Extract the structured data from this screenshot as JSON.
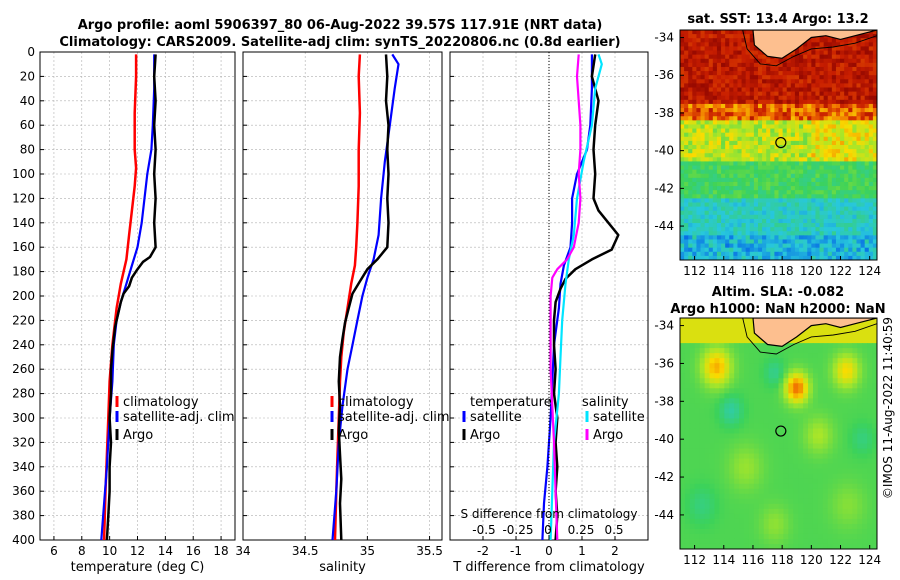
{
  "header": {
    "title_line1": "Argo profile: aoml 5906397_80 06-Aug-2022 39.57S 117.91E (NRT data)",
    "title_line2": "Climatology: CARS2009. Satellite-adj clim: synTS_20220806.nc (0.8d earlier)"
  },
  "credit": "©IMOS 11-Aug-2022 11:40:59",
  "colors": {
    "climatology": "#ff0000",
    "satellite": "#0000ff",
    "argo": "#000000",
    "sal_satellite": "#00e5ff",
    "sal_argo": "#ff00ff",
    "grid": "#b0b0b0",
    "land": "#fdbf8f"
  },
  "chart_data": [
    {
      "id": "temp",
      "type": "line",
      "xlabel": "temperature (deg C)",
      "xlim": [
        5,
        19
      ],
      "xticks": [
        6,
        8,
        10,
        12,
        14,
        16,
        18
      ],
      "ylim": [
        0,
        400
      ],
      "yticks": [
        0,
        20,
        40,
        60,
        80,
        100,
        120,
        140,
        160,
        180,
        200,
        220,
        240,
        260,
        280,
        300,
        320,
        340,
        360,
        380,
        400
      ],
      "legend": [
        "climatology",
        "satellite-adj. clim",
        "Argo"
      ],
      "series": [
        {
          "name": "climatology",
          "color": "#ff0000",
          "width": 2.5,
          "points": [
            [
              11.9,
              2
            ],
            [
              11.9,
              20
            ],
            [
              11.8,
              50
            ],
            [
              11.8,
              80
            ],
            [
              11.9,
              95
            ],
            [
              11.8,
              110
            ],
            [
              11.6,
              130
            ],
            [
              11.4,
              150
            ],
            [
              11.2,
              170
            ],
            [
              10.8,
              190
            ],
            [
              10.5,
              210
            ],
            [
              10.2,
              240
            ],
            [
              10.0,
              270
            ],
            [
              9.9,
              300
            ],
            [
              9.8,
              330
            ],
            [
              9.7,
              360
            ],
            [
              9.6,
              400
            ]
          ]
        },
        {
          "name": "satellite-adj. clim",
          "color": "#0000ff",
          "width": 2.2,
          "points": [
            [
              13.2,
              2
            ],
            [
              13.2,
              30
            ],
            [
              13.1,
              60
            ],
            [
              13.0,
              80
            ],
            [
              12.7,
              100
            ],
            [
              12.5,
              120
            ],
            [
              12.3,
              140
            ],
            [
              12.0,
              160
            ],
            [
              11.6,
              175
            ],
            [
              11.2,
              190
            ],
            [
              10.8,
              205
            ],
            [
              10.5,
              220
            ],
            [
              10.3,
              240
            ],
            [
              10.2,
              270
            ],
            [
              10.0,
              300
            ],
            [
              9.8,
              340
            ],
            [
              9.6,
              370
            ],
            [
              9.4,
              400
            ]
          ]
        },
        {
          "name": "Argo",
          "color": "#000000",
          "width": 2.5,
          "points": [
            [
              13.3,
              2
            ],
            [
              13.2,
              20
            ],
            [
              13.3,
              40
            ],
            [
              13.2,
              60
            ],
            [
              13.3,
              80
            ],
            [
              13.2,
              100
            ],
            [
              13.3,
              120
            ],
            [
              13.2,
              140
            ],
            [
              13.3,
              160
            ],
            [
              12.9,
              168
            ],
            [
              12.4,
              172
            ],
            [
              12.0,
              178
            ],
            [
              11.6,
              185
            ],
            [
              11.4,
              192
            ],
            [
              11.0,
              198
            ],
            [
              10.8,
              205
            ],
            [
              10.6,
              215
            ],
            [
              10.4,
              225
            ],
            [
              10.3,
              235
            ],
            [
              10.2,
              245
            ],
            [
              10.1,
              260
            ],
            [
              10.1,
              280
            ],
            [
              10.0,
              300
            ],
            [
              10.1,
              320
            ],
            [
              10.0,
              340
            ],
            [
              10.0,
              360
            ],
            [
              9.9,
              380
            ],
            [
              9.8,
              400
            ]
          ]
        }
      ]
    },
    {
      "id": "sal",
      "type": "line",
      "xlabel": "salinity",
      "xlim": [
        34,
        35.6
      ],
      "xticks": [
        34,
        34.5,
        35,
        35.5
      ],
      "xticklabels": [
        "34",
        "34.5",
        "35",
        "35.5"
      ],
      "ylim": [
        0,
        400
      ],
      "legend": [
        "climatology",
        "satellite-adj. clim",
        "Argo"
      ],
      "series": [
        {
          "name": "climatology",
          "color": "#ff0000",
          "width": 2.5,
          "points": [
            [
              34.94,
              2
            ],
            [
              34.93,
              20
            ],
            [
              34.94,
              50
            ],
            [
              34.93,
              80
            ],
            [
              34.93,
              110
            ],
            [
              34.92,
              140
            ],
            [
              34.91,
              160
            ],
            [
              34.9,
              175
            ],
            [
              34.87,
              190
            ],
            [
              34.84,
              210
            ],
            [
              34.81,
              230
            ],
            [
              34.79,
              250
            ],
            [
              34.78,
              270
            ],
            [
              34.77,
              300
            ],
            [
              34.76,
              330
            ],
            [
              34.75,
              360
            ],
            [
              34.74,
              400
            ]
          ]
        },
        {
          "name": "satellite-adj. clim",
          "color": "#0000ff",
          "width": 2.2,
          "points": [
            [
              35.2,
              2
            ],
            [
              35.25,
              10
            ],
            [
              35.22,
              30
            ],
            [
              35.18,
              60
            ],
            [
              35.14,
              90
            ],
            [
              35.11,
              120
            ],
            [
              35.09,
              150
            ],
            [
              35.05,
              170
            ],
            [
              35.0,
              185
            ],
            [
              34.96,
              200
            ],
            [
              34.92,
              220
            ],
            [
              34.88,
              240
            ],
            [
              34.84,
              260
            ],
            [
              34.8,
              290
            ],
            [
              34.77,
              320
            ],
            [
              34.75,
              360
            ],
            [
              34.72,
              400
            ]
          ]
        },
        {
          "name": "Argo",
          "color": "#000000",
          "width": 2.5,
          "points": [
            [
              35.15,
              2
            ],
            [
              35.16,
              20
            ],
            [
              35.15,
              40
            ],
            [
              35.17,
              60
            ],
            [
              35.16,
              80
            ],
            [
              35.17,
              100
            ],
            [
              35.16,
              120
            ],
            [
              35.17,
              140
            ],
            [
              35.16,
              160
            ],
            [
              35.08,
              170
            ],
            [
              35.0,
              178
            ],
            [
              34.94,
              188
            ],
            [
              34.88,
              198
            ],
            [
              34.85,
              210
            ],
            [
              34.82,
              222
            ],
            [
              34.8,
              235
            ],
            [
              34.78,
              250
            ],
            [
              34.77,
              270
            ],
            [
              34.78,
              290
            ],
            [
              34.77,
              310
            ],
            [
              34.78,
              330
            ],
            [
              34.79,
              350
            ],
            [
              34.78,
              370
            ],
            [
              34.79,
              400
            ]
          ]
        }
      ]
    },
    {
      "id": "diff",
      "type": "line",
      "xlabel": "T difference from climatology",
      "xlim": [
        -3,
        3
      ],
      "xticks": [
        -2,
        -1,
        0,
        1,
        2
      ],
      "xticklabels": [
        "-2",
        "-1",
        "0",
        "1",
        "2"
      ],
      "s_axis_label": "S difference from climatology",
      "s_ticks": [
        "-0.5",
        "-0.25",
        "0",
        "0.25",
        "0.5"
      ],
      "ylim": [
        0,
        400
      ],
      "legend_temperature": {
        "title": "temperature",
        "items": [
          "satellite",
          "Argo"
        ]
      },
      "legend_salinity": {
        "title": "salinity",
        "items": [
          "satellite",
          "Argo"
        ]
      },
      "series": [
        {
          "name": "temperature satellite",
          "color": "#0000ff",
          "width": 2.2,
          "points": [
            [
              1.3,
              2
            ],
            [
              1.3,
              30
            ],
            [
              1.25,
              60
            ],
            [
              1.15,
              80
            ],
            [
              0.85,
              100
            ],
            [
              0.7,
              120
            ],
            [
              0.7,
              140
            ],
            [
              0.65,
              160
            ],
            [
              0.45,
              175
            ],
            [
              0.35,
              190
            ],
            [
              0.3,
              210
            ],
            [
              0.15,
              240
            ],
            [
              0.1,
              270
            ],
            [
              0.05,
              300
            ],
            [
              -0.05,
              340
            ],
            [
              -0.15,
              370
            ],
            [
              -0.2,
              400
            ]
          ]
        },
        {
          "name": "temperature Argo",
          "color": "#000000",
          "width": 2.5,
          "points": [
            [
              1.4,
              2
            ],
            [
              1.3,
              20
            ],
            [
              1.5,
              40
            ],
            [
              1.4,
              60
            ],
            [
              1.35,
              80
            ],
            [
              1.4,
              100
            ],
            [
              1.35,
              120
            ],
            [
              1.5,
              130
            ],
            [
              1.8,
              140
            ],
            [
              2.1,
              150
            ],
            [
              1.9,
              162
            ],
            [
              1.3,
              170
            ],
            [
              0.8,
              178
            ],
            [
              0.5,
              186
            ],
            [
              0.35,
              194
            ],
            [
              0.2,
              205
            ],
            [
              0.15,
              220
            ],
            [
              0.15,
              240
            ],
            [
              0.2,
              260
            ],
            [
              0.15,
              280
            ],
            [
              0.25,
              300
            ],
            [
              0.2,
              320
            ],
            [
              0.25,
              340
            ],
            [
              0.2,
              360
            ],
            [
              0.25,
              380
            ],
            [
              0.2,
              400
            ]
          ]
        },
        {
          "name": "salinity satellite",
          "color": "#00e5ff",
          "width": 2.2,
          "points": [
            [
              1.5,
              2
            ],
            [
              1.6,
              10
            ],
            [
              1.4,
              30
            ],
            [
              1.3,
              60
            ],
            [
              1.05,
              90
            ],
            [
              0.85,
              120
            ],
            [
              0.75,
              150
            ],
            [
              0.6,
              170
            ],
            [
              0.5,
              190
            ],
            [
              0.4,
              220
            ],
            [
              0.35,
              250
            ],
            [
              0.3,
              280
            ],
            [
              0.15,
              320
            ],
            [
              0.1,
              360
            ],
            [
              0.05,
              400
            ]
          ]
        },
        {
          "name": "salinity Argo",
          "color": "#ff00ff",
          "width": 2.2,
          "points": [
            [
              0.9,
              2
            ],
            [
              0.85,
              20
            ],
            [
              0.9,
              40
            ],
            [
              0.95,
              60
            ],
            [
              0.95,
              80
            ],
            [
              0.9,
              100
            ],
            [
              0.95,
              120
            ],
            [
              0.9,
              140
            ],
            [
              0.75,
              160
            ],
            [
              0.55,
              170
            ],
            [
              0.25,
              178
            ],
            [
              0.1,
              185
            ],
            [
              0.05,
              200
            ],
            [
              0.05,
              230
            ],
            [
              0.05,
              260
            ],
            [
              0.1,
              290
            ],
            [
              0.15,
              320
            ],
            [
              0.2,
              360
            ],
            [
              0.25,
              400
            ]
          ]
        }
      ]
    },
    {
      "id": "sst_map",
      "type": "heatmap",
      "title": "sat. SST: 13.4 Argo: 13.2",
      "xticks": [
        112,
        114,
        116,
        118,
        120,
        122,
        124
      ],
      "yticks": [
        -34,
        -36,
        -38,
        -40,
        -42,
        -44
      ],
      "xlim": [
        111,
        124.5
      ],
      "ylim": [
        -45.8,
        -33.6
      ],
      "marker": [
        117.91,
        -39.57
      ]
    },
    {
      "id": "sla_map",
      "type": "heatmap",
      "title_line1": "Altim. SLA: -0.082",
      "title_line2": "Argo h1000: NaN h2000: NaN",
      "xticks": [
        112,
        114,
        116,
        118,
        120,
        122,
        124
      ],
      "yticks": [
        -34,
        -36,
        -38,
        -40,
        -42,
        -44
      ],
      "xlim": [
        111,
        124.5
      ],
      "ylim": [
        -45.8,
        -33.6
      ],
      "marker": [
        117.91,
        -39.57
      ]
    }
  ]
}
